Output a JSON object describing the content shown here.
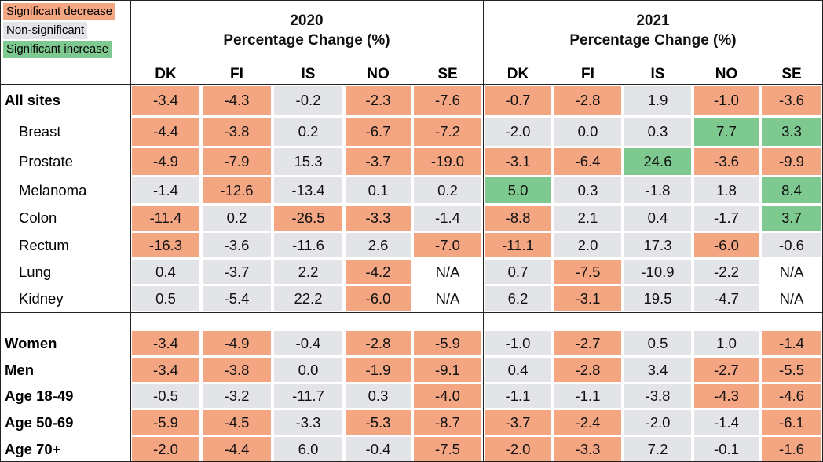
{
  "legend": [
    {
      "label": "Significant decrease",
      "color": "#f4a582"
    },
    {
      "label": "Non-significant",
      "color": "#e3e4e8"
    },
    {
      "label": "Significant increase",
      "color": "#7ec98f"
    }
  ],
  "chart_data": {
    "type": "table",
    "groups": [
      {
        "year": "2020",
        "subtitle": "Percentage Change (%)"
      },
      {
        "year": "2021",
        "subtitle": "Percentage Change (%)"
      }
    ],
    "columns": [
      "DK",
      "FI",
      "IS",
      "NO",
      "SE"
    ],
    "rows": [
      {
        "label": "All sites",
        "bold": true,
        "indent": false,
        "values": [
          "-3.4",
          "-4.3",
          "-0.2",
          "-2.3",
          "-7.6",
          "-0.7",
          "-2.8",
          "1.9",
          "-1.0",
          "-3.6"
        ],
        "sig": [
          "d",
          "d",
          "n",
          "d",
          "d",
          "d",
          "d",
          "n",
          "d",
          "d"
        ]
      },
      {
        "label": "Breast",
        "bold": false,
        "indent": true,
        "values": [
          "-4.4",
          "-3.8",
          "0.2",
          "-6.7",
          "-7.2",
          "-2.0",
          "0.0",
          "0.3",
          "7.7",
          "3.3"
        ],
        "sig": [
          "d",
          "d",
          "n",
          "d",
          "d",
          "n",
          "n",
          "n",
          "i",
          "i"
        ]
      },
      {
        "label": "Prostate",
        "bold": false,
        "indent": true,
        "values": [
          "-4.9",
          "-7.9",
          "15.3",
          "-3.7",
          "-19.0",
          "-3.1",
          "-6.4",
          "24.6",
          "-3.6",
          "-9.9"
        ],
        "sig": [
          "d",
          "d",
          "n",
          "d",
          "d",
          "d",
          "d",
          "i",
          "d",
          "d"
        ]
      },
      {
        "label": "Melanoma",
        "bold": false,
        "indent": true,
        "values": [
          "-1.4",
          "-12.6",
          "-13.4",
          "0.1",
          "0.2",
          "5.0",
          "0.3",
          "-1.8",
          "1.8",
          "8.4"
        ],
        "sig": [
          "n",
          "d",
          "n",
          "n",
          "n",
          "i",
          "n",
          "n",
          "n",
          "i"
        ]
      },
      {
        "label": "Colon",
        "bold": false,
        "indent": true,
        "values": [
          "-11.4",
          "0.2",
          "-26.5",
          "-3.3",
          "-1.4",
          "-8.8",
          "2.1",
          "0.4",
          "-1.7",
          "3.7"
        ],
        "sig": [
          "d",
          "n",
          "d",
          "d",
          "n",
          "d",
          "n",
          "n",
          "n",
          "i"
        ]
      },
      {
        "label": "Rectum",
        "bold": false,
        "indent": true,
        "values": [
          "-16.3",
          "-3.6",
          "-11.6",
          "2.6",
          "-7.0",
          "-11.1",
          "2.0",
          "17.3",
          "-6.0",
          "-0.6"
        ],
        "sig": [
          "d",
          "n",
          "n",
          "n",
          "d",
          "d",
          "n",
          "n",
          "d",
          "n"
        ]
      },
      {
        "label": "Lung",
        "bold": false,
        "indent": true,
        "values": [
          "0.4",
          "-3.7",
          "2.2",
          "-4.2",
          "N/A",
          "0.7",
          "-7.5",
          "-10.9",
          "-2.2",
          "N/A"
        ],
        "sig": [
          "n",
          "n",
          "n",
          "d",
          "w",
          "n",
          "d",
          "n",
          "n",
          "w"
        ]
      },
      {
        "label": "Kidney",
        "bold": false,
        "indent": true,
        "values": [
          "0.5",
          "-5.4",
          "22.2",
          "-6.0",
          "N/A",
          "6.2",
          "-3.1",
          "19.5",
          "-4.7",
          "N/A"
        ],
        "sig": [
          "n",
          "n",
          "n",
          "d",
          "w",
          "n",
          "d",
          "n",
          "n",
          "w"
        ]
      },
      {
        "label": "Women",
        "bold": true,
        "indent": false,
        "values": [
          "-3.4",
          "-4.9",
          "-0.4",
          "-2.8",
          "-5.9",
          "-1.0",
          "-2.7",
          "0.5",
          "1.0",
          "-1.4"
        ],
        "sig": [
          "d",
          "d",
          "n",
          "d",
          "d",
          "n",
          "d",
          "n",
          "n",
          "d"
        ]
      },
      {
        "label": "Men",
        "bold": true,
        "indent": false,
        "values": [
          "-3.4",
          "-3.8",
          "0.0",
          "-1.9",
          "-9.1",
          "0.4",
          "-2.8",
          "3.4",
          "-2.7",
          "-5.5"
        ],
        "sig": [
          "d",
          "d",
          "n",
          "d",
          "d",
          "n",
          "d",
          "n",
          "d",
          "d"
        ]
      },
      {
        "label": "Age 18-49",
        "bold": true,
        "indent": false,
        "values": [
          "-0.5",
          "-3.2",
          "-11.7",
          "0.3",
          "-4.0",
          "-1.1",
          "-1.1",
          "-3.8",
          "-4.3",
          "-4.6"
        ],
        "sig": [
          "n",
          "n",
          "n",
          "n",
          "d",
          "n",
          "n",
          "n",
          "d",
          "d"
        ]
      },
      {
        "label": "Age 50-69",
        "bold": true,
        "indent": false,
        "values": [
          "-5.9",
          "-4.5",
          "-3.3",
          "-5.3",
          "-8.7",
          "-3.7",
          "-2.4",
          "-2.0",
          "-1.4",
          "-6.1"
        ],
        "sig": [
          "d",
          "d",
          "n",
          "d",
          "d",
          "d",
          "d",
          "n",
          "n",
          "d"
        ]
      },
      {
        "label": "Age 70+",
        "bold": true,
        "indent": false,
        "values": [
          "-2.0",
          "-4.4",
          "6.0",
          "-0.4",
          "-7.5",
          "-2.0",
          "-3.3",
          "7.2",
          "-0.1",
          "-1.6"
        ],
        "sig": [
          "d",
          "d",
          "n",
          "n",
          "d",
          "d",
          "d",
          "n",
          "n",
          "d"
        ]
      }
    ]
  }
}
